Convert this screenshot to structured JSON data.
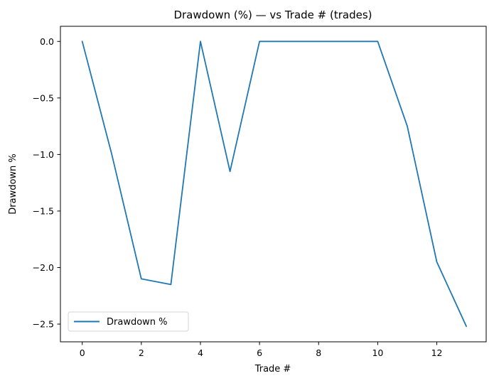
{
  "chart_data": {
    "type": "line",
    "title": "Drawdown (%) — vs Trade # (trades)",
    "xlabel": "Trade #",
    "ylabel": "Drawdown %",
    "series": [
      {
        "name": "Drawdown %",
        "color": "#1f77b4",
        "x": [
          0,
          1,
          2,
          3,
          4,
          5,
          6,
          7,
          8,
          9,
          10,
          11,
          12,
          13
        ],
        "y": [
          0.0,
          -1.0,
          -2.1,
          -2.15,
          0.0,
          -1.15,
          0.0,
          0.0,
          0.0,
          0.0,
          0.0,
          -0.75,
          -1.95,
          -2.52
        ]
      }
    ],
    "xticks": {
      "values": [
        0,
        2,
        4,
        6,
        8,
        10,
        12
      ],
      "labels": [
        "0",
        "2",
        "4",
        "6",
        "8",
        "10",
        "12"
      ]
    },
    "yticks": {
      "values": [
        0.0,
        -0.5,
        -1.0,
        -1.5,
        -2.0,
        -2.5
      ],
      "labels": [
        "0.0",
        "−0.5",
        "−1.0",
        "−1.5",
        "−2.0",
        "−2.5"
      ]
    },
    "xlim": [
      -0.68,
      13.68
    ],
    "ylim": [
      -2.66,
      0.13
    ],
    "grid": false,
    "legend": {
      "position": "lower left",
      "entries": [
        {
          "label": "Drawdown %",
          "color": "#1f77b4"
        }
      ]
    }
  },
  "colors": {
    "line": "#1f77b4",
    "axis": "#000000",
    "text": "#000000",
    "legend_border": "#d4d4d4",
    "legend_background": "#ffffff",
    "figure_background": "#ffffff"
  }
}
